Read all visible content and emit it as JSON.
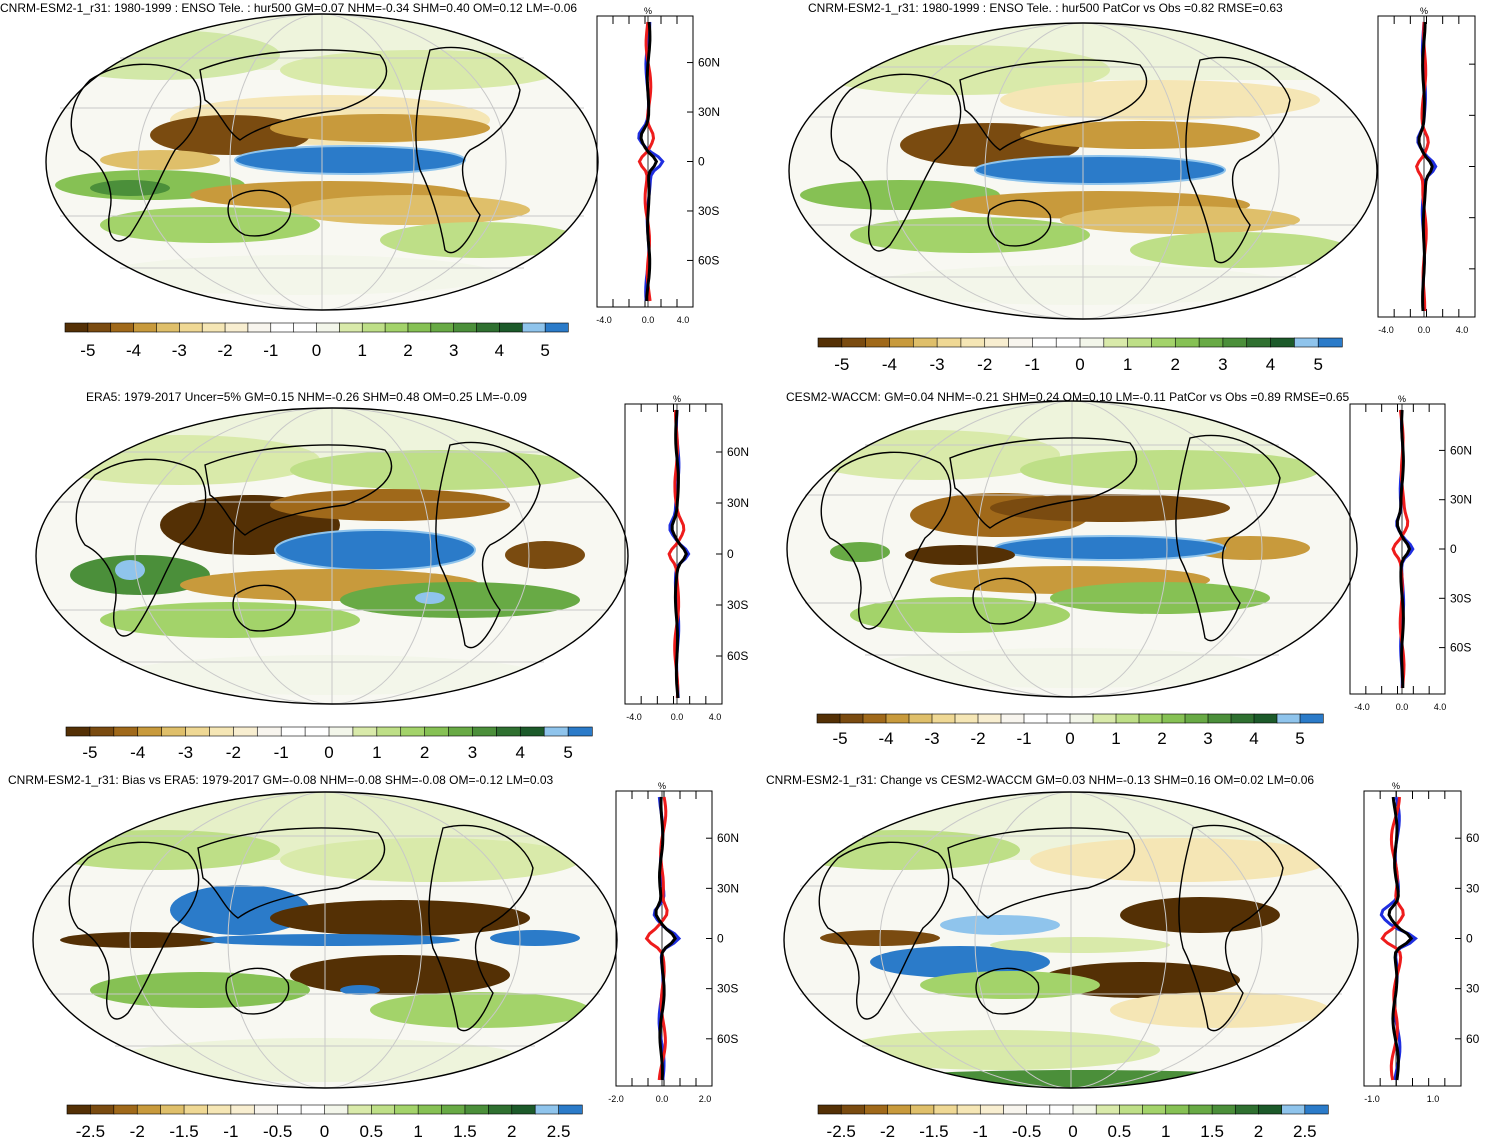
{
  "palette_main": [
    "#543005",
    "#7a4b10",
    "#a0691a",
    "#c89a3c",
    "#dfbf6a",
    "#efd894",
    "#f5e6b5",
    "#f8eed0",
    "#f8f5ee",
    "#ffffff",
    "#ffffff",
    "#f3f6ea",
    "#d9eaaa",
    "#bedf87",
    "#a3d36a",
    "#86c154",
    "#68aa45",
    "#4b8f3a",
    "#2f7030",
    "#1c5a2a",
    "#8fc4ec",
    "#2b7bc9"
  ],
  "line_colors": {
    "blue": "#1f2ee0",
    "red": "#ee1c1c",
    "black": "#000000"
  },
  "percent_label": "%",
  "panels": [
    {
      "id": "top-left",
      "title": "CNRM-ESM2-1_r31: 1980-1999 : ENSO Tele. : hur500 GM=0.07 NHM=-0.34 SHM=0.40 OM=0.12 LM=-0.06",
      "colorbar_labels": [
        "-5",
        "-4",
        "-3",
        "-2",
        "-1",
        "0",
        "1",
        "2",
        "3",
        "4",
        "5"
      ],
      "profile_ticks_x": [
        "-4.0",
        "0.0",
        "4.0"
      ],
      "profile_ticks_y": [
        "60N",
        "30N",
        "0",
        "30S",
        "60S"
      ]
    },
    {
      "id": "top-right",
      "title": "CNRM-ESM2-1_r31: 1980-1999 : ENSO Tele. : hur500 PatCor vs Obs =0.82 RMSE=0.63",
      "colorbar_labels": [
        "-5",
        "-4",
        "-3",
        "-2",
        "-1",
        "0",
        "1",
        "2",
        "3",
        "4",
        "5"
      ],
      "profile_ticks_x": [
        "-4.0",
        "0.0",
        "4.0"
      ],
      "profile_ticks_y": []
    },
    {
      "id": "mid-left",
      "title": "ERA5: 1979-2017 Uncer=5% GM=0.15 NHM=-0.26 SHM=0.48 OM=0.25 LM=-0.09",
      "colorbar_labels": [
        "-5",
        "-4",
        "-3",
        "-2",
        "-1",
        "0",
        "1",
        "2",
        "3",
        "4",
        "5"
      ],
      "profile_ticks_x": [
        "-4.0",
        "0.0",
        "4.0"
      ],
      "profile_ticks_y": [
        "60N",
        "30N",
        "0",
        "30S",
        "60S"
      ]
    },
    {
      "id": "mid-right",
      "title": "CESM2-WACCM: GM=0.04 NHM=-0.21 SHM=0.24 OM=0.10 LM=-0.11 PatCor vs Obs =0.89 RMSE=0.65",
      "colorbar_labels": [
        "-5",
        "-4",
        "-3",
        "-2",
        "-1",
        "0",
        "1",
        "2",
        "3",
        "4",
        "5"
      ],
      "profile_ticks_x": [
        "-4.0",
        "0.0",
        "4.0"
      ],
      "profile_ticks_y": [
        "60N",
        "30N",
        "0",
        "30S",
        "60S"
      ]
    },
    {
      "id": "bottom-left",
      "title": "CNRM-ESM2-1_r31: Bias vs ERA5: 1979-2017 GM=-0.08 NHM=-0.08 SHM=-0.08 OM=-0.12 LM=0.03",
      "colorbar_labels": [
        "-2.5",
        "-2",
        "-1.5",
        "-1",
        "-0.5",
        "0",
        "0.5",
        "1",
        "1.5",
        "2",
        "2.5"
      ],
      "profile_ticks_x": [
        "-2.0",
        "0.0",
        "2.0"
      ],
      "profile_ticks_y": [
        "60N",
        "30N",
        "0",
        "30S",
        "60S"
      ]
    },
    {
      "id": "bottom-right",
      "title": "CNRM-ESM2-1_r31: Change vs CESM2-WACCM GM=0.03 NHM=-0.13 SHM=0.16 OM=0.02 LM=0.06",
      "colorbar_labels": [
        "-2.5",
        "-2",
        "-1.5",
        "-1",
        "-0.5",
        "0",
        "0.5",
        "1",
        "1.5",
        "2",
        "2.5"
      ],
      "profile_ticks_x": [
        "-1.0",
        "1.0"
      ],
      "profile_ticks_y": [
        "60",
        "30",
        "0",
        "30",
        "60"
      ]
    }
  ]
}
